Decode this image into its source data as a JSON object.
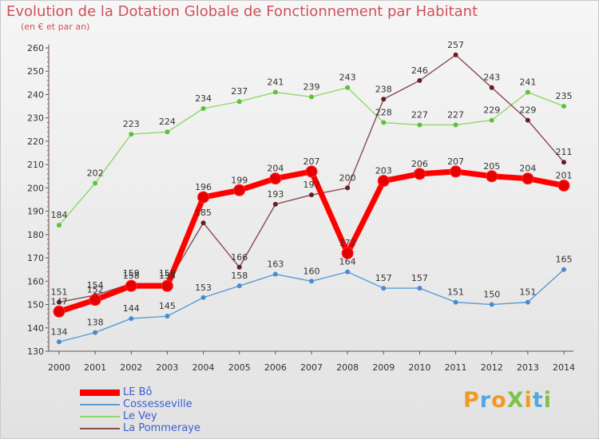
{
  "header": {
    "title": "Evolution de la Dotation Globale de Fonctionnement par Habitant",
    "subtitle": "(en € et par an)"
  },
  "logo": {
    "text": "ProXiti"
  },
  "chart_data": {
    "type": "line",
    "title": "Evolution de la Dotation Globale de Fonctionnement par Habitant",
    "subtitle": "(en € et par an)",
    "xlabel": "",
    "ylabel": "",
    "ylim": [
      130,
      260
    ],
    "yticks": [
      130,
      140,
      150,
      160,
      170,
      180,
      190,
      200,
      210,
      220,
      230,
      240,
      250,
      260
    ],
    "grid": false,
    "legend_position": "bottom-left",
    "categories": [
      "2000",
      "2001",
      "2002",
      "2003",
      "2004",
      "2005",
      "2006",
      "2007",
      "2008",
      "2009",
      "2010",
      "2011",
      "2012",
      "2013",
      "2014"
    ],
    "series": [
      {
        "name": "LE Bô",
        "color": "#ff0000",
        "marker": "#e80000",
        "weight": "heavy",
        "values": [
          147,
          152,
          158,
          158,
          196,
          199,
          204,
          207,
          172,
          203,
          206,
          207,
          205,
          204,
          201
        ]
      },
      {
        "name": "Cossesseville",
        "color": "#5b9bd5",
        "marker": "#4a8ad0",
        "weight": "thin",
        "values": [
          134,
          138,
          144,
          145,
          153,
          158,
          163,
          160,
          164,
          157,
          157,
          151,
          150,
          151,
          165
        ]
      },
      {
        "name": "Le Vey",
        "color": "#8fd86a",
        "marker": "#5cc23a",
        "weight": "thin",
        "values": [
          184,
          202,
          223,
          224,
          234,
          237,
          241,
          239,
          243,
          228,
          227,
          227,
          229,
          241,
          235
        ]
      },
      {
        "name": "La Pommeraye",
        "color": "#8b4a52",
        "marker": "#6a1a22",
        "weight": "thin",
        "values": [
          151,
          154,
          159,
          159,
          185,
          166,
          193,
          197,
          200,
          238,
          246,
          257,
          243,
          229,
          211
        ]
      }
    ]
  }
}
